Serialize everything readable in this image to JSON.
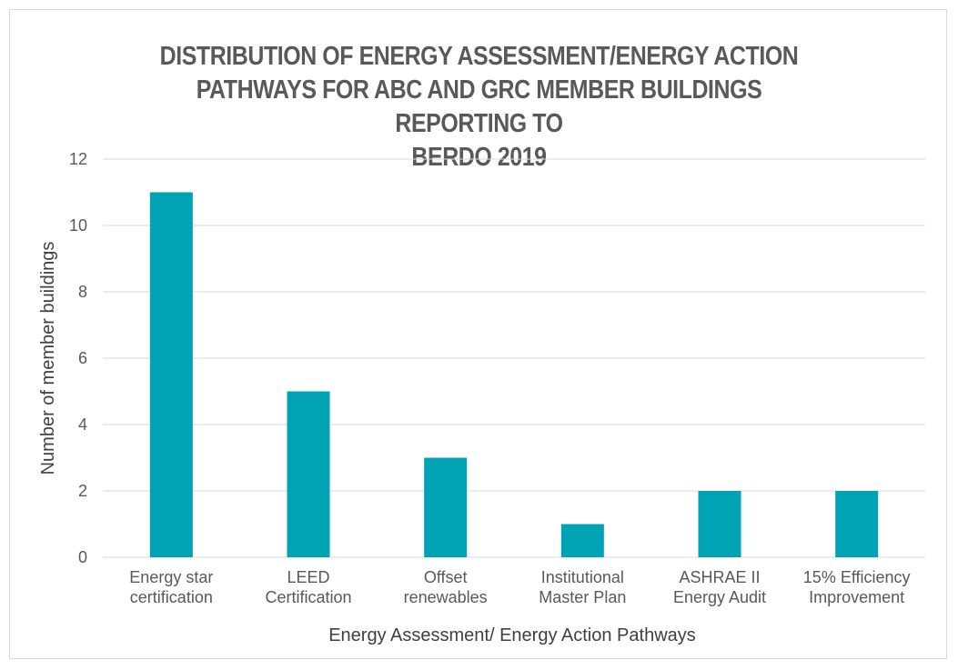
{
  "chart_data": {
    "type": "bar",
    "title_lines": [
      "DISTRIBUTION OF ENERGY ASSESSMENT/ENERGY ACTION",
      "PATHWAYS FOR ABC AND GRC MEMBER BUILDINGS REPORTING TO",
      "BERDO 2019"
    ],
    "categories": [
      [
        "Energy star",
        "certification"
      ],
      [
        "LEED",
        "Certification"
      ],
      [
        "Offset",
        "renewables"
      ],
      [
        "Institutional",
        "Master Plan"
      ],
      [
        "ASHRAE II",
        "Energy Audit"
      ],
      [
        "15% Efficiency",
        "Improvement"
      ]
    ],
    "values": [
      11,
      5,
      3,
      1,
      2,
      2
    ],
    "xlabel": "Energy Assessment/ Energy Action Pathways",
    "ylabel": "Number of member buildings",
    "ylim": [
      0,
      12
    ],
    "yticks": [
      "0",
      "2",
      "4",
      "6",
      "8",
      "10",
      "12"
    ],
    "grid": true,
    "bar_color": "#00A3B4",
    "grid_color": "#d9d9d9"
  }
}
